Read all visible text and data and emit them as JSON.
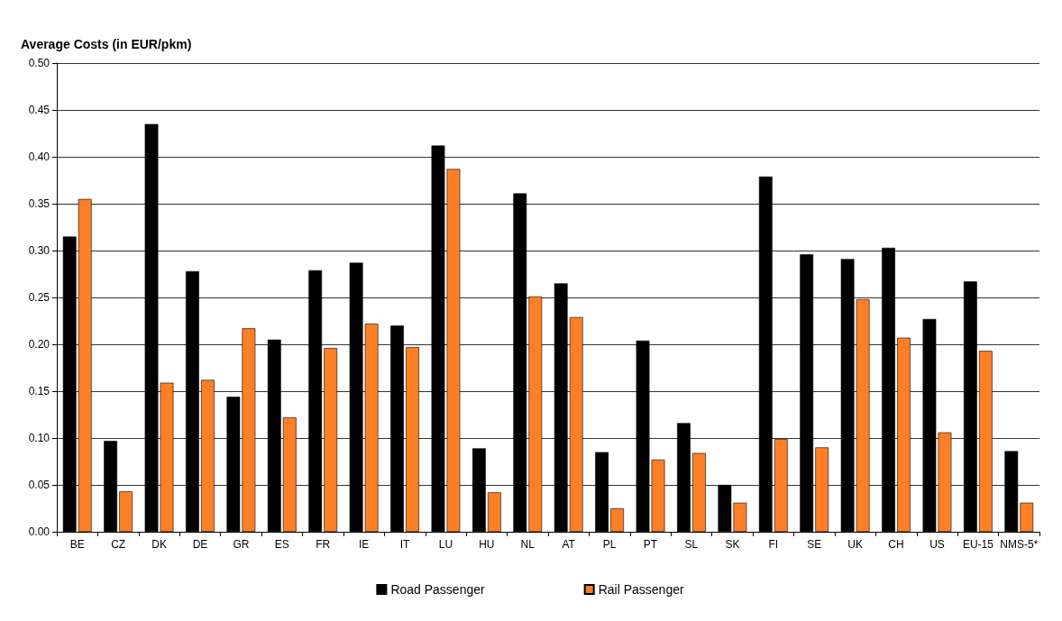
{
  "chart_data": {
    "type": "bar",
    "ylabel": "Average Costs (in EUR/pkm)",
    "categories": [
      "BE",
      "CZ",
      "DK",
      "DE",
      "GR",
      "ES",
      "FR",
      "IE",
      "IT",
      "LU",
      "HU",
      "NL",
      "AT",
      "PL",
      "PT",
      "SL",
      "SK",
      "FI",
      "SE",
      "UK",
      "CH",
      "US",
      "EU-15",
      "NMS-5*"
    ],
    "series": [
      {
        "name": "Road Passenger",
        "color": "#000000",
        "values": [
          0.315,
          0.097,
          0.435,
          0.278,
          0.144,
          0.205,
          0.279,
          0.287,
          0.22,
          0.412,
          0.089,
          0.361,
          0.265,
          0.085,
          0.204,
          0.116,
          0.05,
          0.379,
          0.296,
          0.291,
          0.303,
          0.227,
          0.267,
          0.086
        ]
      },
      {
        "name": "Rail Passenger",
        "color": "#ff7f27",
        "values": [
          0.355,
          0.043,
          0.159,
          0.162,
          0.217,
          0.122,
          0.196,
          0.222,
          0.197,
          0.387,
          0.042,
          0.251,
          0.229,
          0.025,
          0.077,
          0.084,
          0.031,
          0.099,
          0.09,
          0.248,
          0.207,
          0.106,
          0.193,
          0.031
        ]
      }
    ],
    "ylim": [
      0,
      0.5
    ],
    "yticks": [
      {
        "value": 0,
        "label": "0.00"
      },
      {
        "value": 0.05,
        "label": "0.05"
      },
      {
        "value": 0.1,
        "label": "0.10"
      },
      {
        "value": 0.15,
        "label": "0.15"
      },
      {
        "value": 0.2,
        "label": "0.20"
      },
      {
        "value": 0.25,
        "label": "0.25"
      },
      {
        "value": 0.3,
        "label": "0.30"
      },
      {
        "value": 0.35,
        "label": "0.35"
      },
      {
        "value": 0.4,
        "label": "0.40"
      },
      {
        "value": 0.45,
        "label": "0.45"
      },
      {
        "value": 0.5,
        "label": "0.50"
      }
    ],
    "grid": "y",
    "legend": "bottom"
  }
}
